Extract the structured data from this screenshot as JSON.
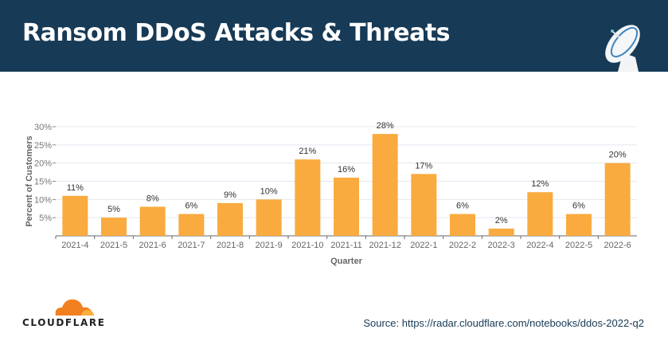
{
  "header": {
    "title": "Ransom DDoS Attacks & Threats",
    "icon": "satellite-dish-icon",
    "background": "#173a56"
  },
  "footer": {
    "logo_text": "CLOUDFLARE",
    "source": "Source: https://radar.cloudflare.com/notebooks/ddos-2022-q2"
  },
  "chart_data": {
    "type": "bar",
    "title": "",
    "xlabel": "Quarter",
    "ylabel": "Percent of Customers",
    "ylim": [
      0,
      30
    ],
    "yticks": [
      "5%",
      "10%",
      "15%",
      "20%",
      "25%",
      "30%"
    ],
    "grid": true,
    "bar_color": "#f9ab3f",
    "categories": [
      "2021-4",
      "2021-5",
      "2021-6",
      "2021-7",
      "2021-8",
      "2021-9",
      "2021-10",
      "2021-11",
      "2021-12",
      "2022-1",
      "2022-2",
      "2022-3",
      "2022-4",
      "2022-5",
      "2022-6"
    ],
    "values": [
      11,
      5,
      8,
      6,
      9,
      10,
      21,
      16,
      28,
      17,
      6,
      2,
      12,
      6,
      20
    ],
    "data_labels": [
      "11%",
      "5%",
      "8%",
      "6%",
      "9%",
      "10%",
      "21%",
      "16%",
      "28%",
      "17%",
      "6%",
      "2%",
      "12%",
      "6%",
      "20%"
    ]
  }
}
